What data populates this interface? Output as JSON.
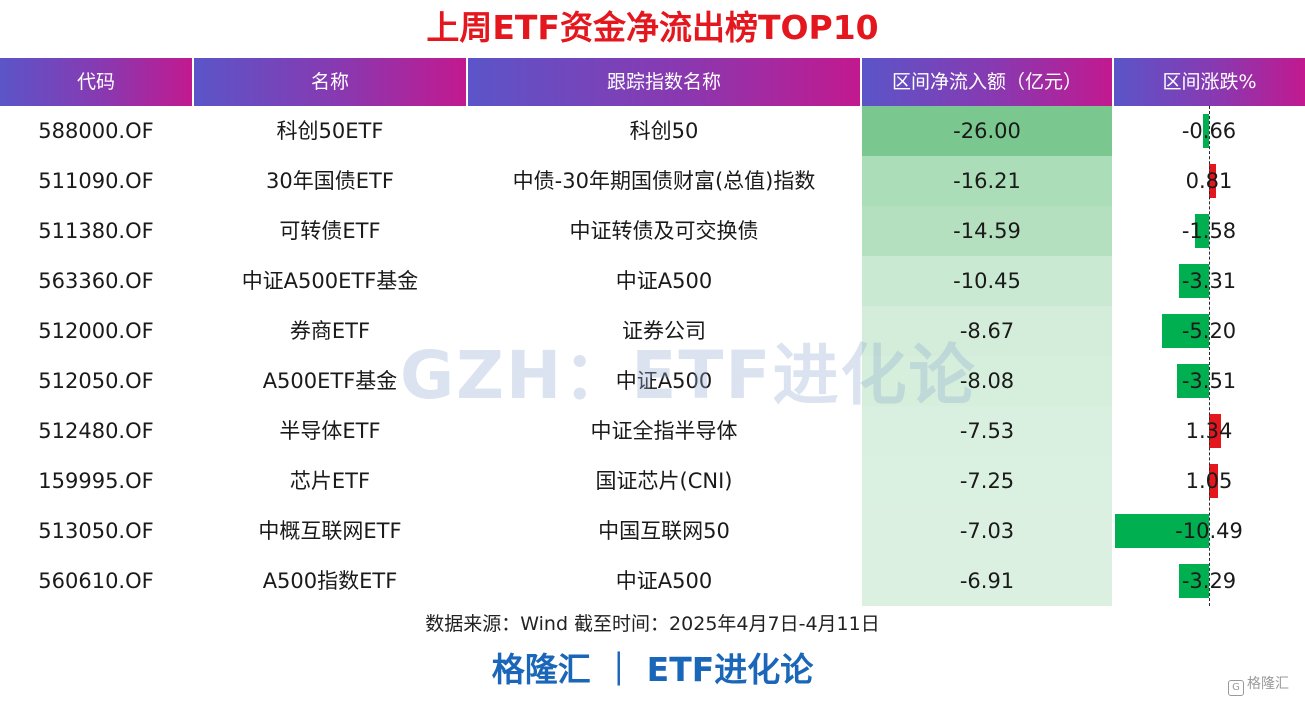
{
  "title": "上周ETF资金净流出榜TOP10",
  "headers": [
    "代码",
    "名称",
    "跟踪指数名称",
    "区间净流入额（亿元）",
    "区间涨跌%"
  ],
  "watermark": "GZH：ETF进化论",
  "source": "数据来源：Wind 截至时间：2025年4月7日-4月11日",
  "brand": "格隆汇 ｜ ETF进化论",
  "corner_logo": "格隆汇",
  "colors": {
    "title": "#e3171d",
    "header_start": "#5b55c8",
    "header_end": "#c2198f",
    "outflow_strong": "#63be7b",
    "bar_negative": "#00b050",
    "bar_positive": "#e3171d",
    "brand": "#1a66b8"
  },
  "chart_data": {
    "type": "table",
    "columns": [
      "代码",
      "名称",
      "跟踪指数名称",
      "区间净流入额（亿元）",
      "区间涨跌%"
    ],
    "rows": [
      {
        "code": "588000.OF",
        "name": "科创50ETF",
        "index": "科创50",
        "flow": -26.0,
        "flow_text": "-26.00",
        "chg": -0.66,
        "chg_text": "-0.66"
      },
      {
        "code": "511090.OF",
        "name": "30年国债ETF",
        "index": "中债-30年期国债财富(总值)指数",
        "flow": -16.21,
        "flow_text": "-16.21",
        "chg": 0.81,
        "chg_text": "0.81"
      },
      {
        "code": "511380.OF",
        "name": "可转债ETF",
        "index": "中证转债及可交换债",
        "flow": -14.59,
        "flow_text": "-14.59",
        "chg": -1.58,
        "chg_text": "-1.58"
      },
      {
        "code": "563360.OF",
        "name": "中证A500ETF基金",
        "index": "中证A500",
        "flow": -10.45,
        "flow_text": "-10.45",
        "chg": -3.31,
        "chg_text": "-3.31"
      },
      {
        "code": "512000.OF",
        "name": "券商ETF",
        "index": "证券公司",
        "flow": -8.67,
        "flow_text": "-8.67",
        "chg": -5.2,
        "chg_text": "-5.20"
      },
      {
        "code": "512050.OF",
        "name": "A500ETF基金",
        "index": "中证A500",
        "flow": -8.08,
        "flow_text": "-8.08",
        "chg": -3.51,
        "chg_text": "-3.51"
      },
      {
        "code": "512480.OF",
        "name": "半导体ETF",
        "index": "中证全指半导体",
        "flow": -7.53,
        "flow_text": "-7.53",
        "chg": 1.34,
        "chg_text": "1.34"
      },
      {
        "code": "159995.OF",
        "name": "芯片ETF",
        "index": "国证芯片(CNI)",
        "flow": -7.25,
        "flow_text": "-7.25",
        "chg": 1.05,
        "chg_text": "1.05"
      },
      {
        "code": "513050.OF",
        "name": "中概互联网ETF",
        "index": "中国互联网50",
        "flow": -7.03,
        "flow_text": "-7.03",
        "chg": -10.49,
        "chg_text": "-10.49"
      },
      {
        "code": "560610.OF",
        "name": "A500指数ETF",
        "index": "中证A500",
        "flow": -6.91,
        "flow_text": "-6.91",
        "chg": -3.29,
        "chg_text": "-3.29"
      }
    ]
  }
}
